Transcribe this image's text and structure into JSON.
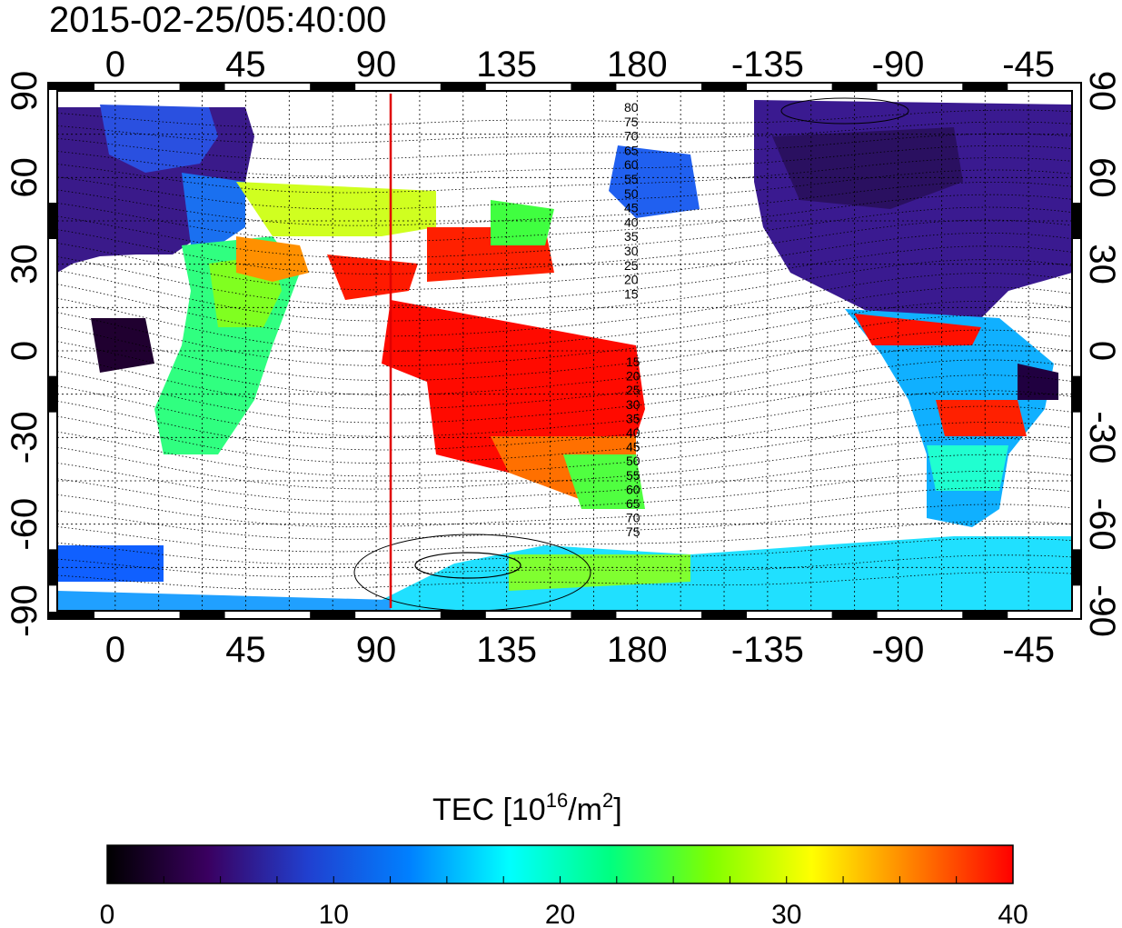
{
  "title": "2015-02-25/05:40:00",
  "map": {
    "top_lon_ticks": [
      "0",
      "45",
      "90",
      "135",
      "180",
      "-135",
      "-90",
      "-45"
    ],
    "bottom_lon_ticks": [
      "0",
      "45",
      "90",
      "135",
      "180",
      "-135",
      "-90",
      "-45"
    ],
    "left_lat_ticks": [
      "90",
      "60",
      "30",
      "0",
      "-30",
      "-60",
      "-90"
    ],
    "right_lat_ticks": [
      "90",
      "60",
      "30",
      "0",
      "-30",
      "-60",
      "-90"
    ],
    "lon_range_degrees": [
      -20,
      330
    ],
    "lat_range_degrees": [
      -90,
      90
    ],
    "marker_line_longitude": 95,
    "marker_line_color": "#e00000",
    "contour_labels_north": [
      "80",
      "75",
      "70",
      "65",
      "60",
      "55",
      "50",
      "45",
      "40",
      "35",
      "30",
      "25",
      "20",
      "15"
    ],
    "contour_labels_south": [
      "15",
      "20",
      "25",
      "30",
      "35",
      "40",
      "45",
      "50",
      "55",
      "60",
      "65",
      "70",
      "75"
    ]
  },
  "colorbar": {
    "title_main": "TEC  [10",
    "title_sup1": "16",
    "title_mid": "/m",
    "title_sup2": "2",
    "title_end": "]",
    "min": 0,
    "max": 40,
    "tick_labels": [
      "0",
      "10",
      "20",
      "30",
      "40"
    ],
    "colors": [
      "#000000",
      "#3a0060",
      "#2040d0",
      "#0080ff",
      "#00ffff",
      "#00ff80",
      "#80ff00",
      "#ffff00",
      "#ff8000",
      "#ff0000"
    ]
  }
}
